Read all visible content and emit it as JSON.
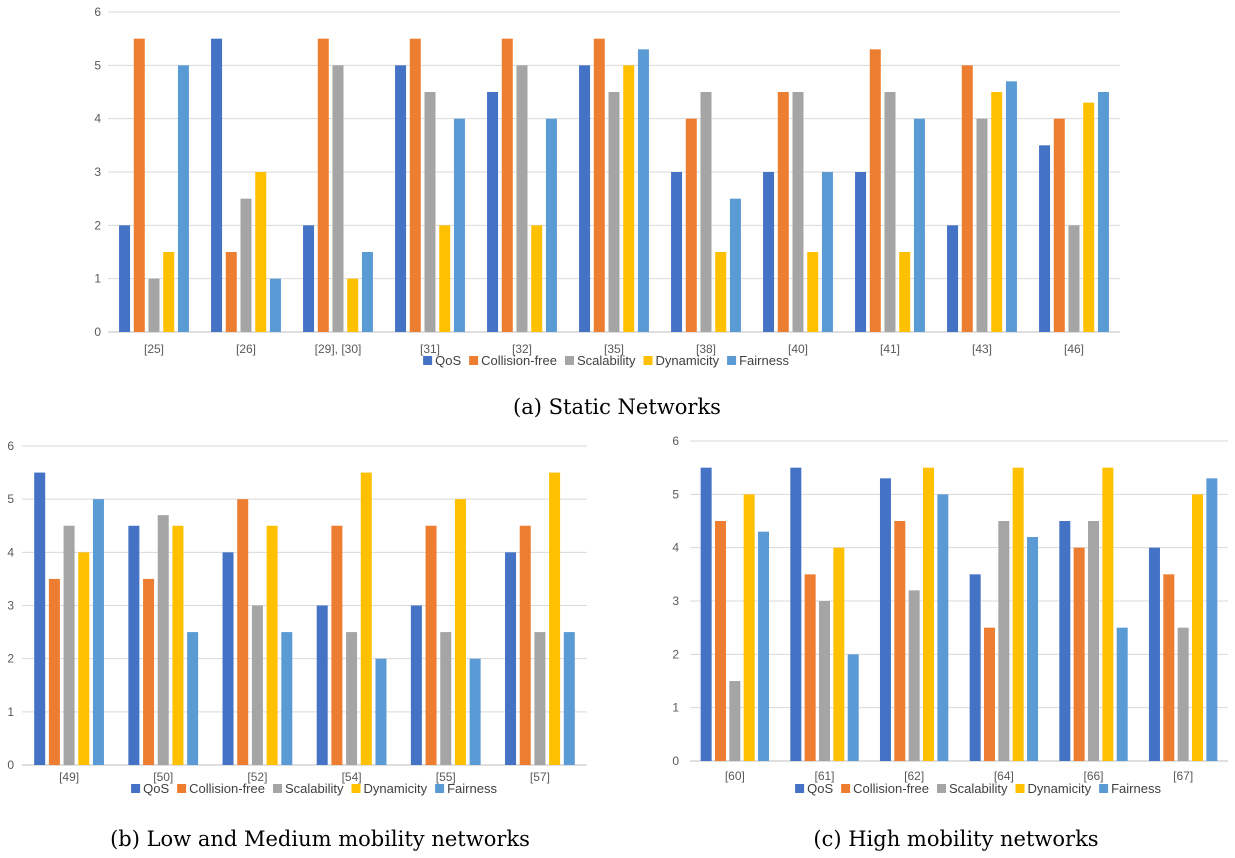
{
  "colors": {
    "QoS": "#4472c4",
    "Collision-free": "#ed7d31",
    "Scalability": "#a5a5a5",
    "Dynamicity": "#ffc000",
    "Fairness": "#5b9bd5"
  },
  "chart_data": [
    {
      "type": "bar",
      "caption": "(a) Static Networks",
      "categories": [
        "[25]",
        "[26]",
        "[29], [30]",
        "[31]",
        "[32]",
        "[35]",
        "[38]",
        "[40]",
        "[41]",
        "[43]",
        "[46]"
      ],
      "ylim": [
        0,
        6
      ],
      "yticks": [
        "0",
        "1",
        "2",
        "3",
        "4",
        "5",
        "6"
      ],
      "grid": true,
      "legend_position": "bottom",
      "series": [
        {
          "name": "QoS",
          "values": [
            2,
            5.5,
            2,
            5,
            4.5,
            5,
            3,
            3,
            3,
            2,
            3.5
          ]
        },
        {
          "name": "Collision-free",
          "values": [
            5.5,
            1.5,
            5.5,
            5.5,
            5.5,
            5.5,
            4,
            4.5,
            5.3,
            5,
            4
          ]
        },
        {
          "name": "Scalability",
          "values": [
            1,
            2.5,
            5,
            4.5,
            5,
            4.5,
            4.5,
            4.5,
            4.5,
            4,
            2
          ]
        },
        {
          "name": "Dynamicity",
          "values": [
            1.5,
            3,
            1,
            2,
            2,
            5,
            1.5,
            1.5,
            1.5,
            4.5,
            4.3
          ]
        },
        {
          "name": "Fairness",
          "values": [
            5,
            1,
            1.5,
            4,
            4,
            5.3,
            2.5,
            3,
            4,
            4.7,
            4.5
          ]
        }
      ]
    },
    {
      "type": "bar",
      "caption": "(b) Low and Medium mobility networks",
      "categories": [
        "[49]",
        "[50]",
        "[52]",
        "[54]",
        "[55]",
        "[57]"
      ],
      "ylim": [
        0,
        6
      ],
      "yticks": [
        "0",
        "1",
        "2",
        "3",
        "4",
        "5",
        "6"
      ],
      "grid": true,
      "legend_position": "bottom",
      "series": [
        {
          "name": "QoS",
          "values": [
            5.5,
            4.5,
            4,
            3,
            3,
            4
          ]
        },
        {
          "name": "Collision-free",
          "values": [
            3.5,
            3.5,
            5,
            4.5,
            4.5,
            4.5
          ]
        },
        {
          "name": "Scalability",
          "values": [
            4.5,
            4.7,
            3,
            2.5,
            2.5,
            2.5
          ]
        },
        {
          "name": "Dynamicity",
          "values": [
            4,
            4.5,
            4.5,
            5.5,
            5,
            5.5
          ]
        },
        {
          "name": "Fairness",
          "values": [
            5,
            2.5,
            2.5,
            2,
            2,
            2.5
          ]
        }
      ]
    },
    {
      "type": "bar",
      "caption": "(c) High mobility networks",
      "categories": [
        "[60]",
        "[61]",
        "[62]",
        "[64]",
        "[66]",
        "[67]"
      ],
      "ylim": [
        0,
        6
      ],
      "yticks": [
        "0",
        "1",
        "2",
        "3",
        "4",
        "5",
        "6"
      ],
      "grid": true,
      "legend_position": "bottom",
      "series": [
        {
          "name": "QoS",
          "values": [
            5.5,
            5.5,
            5.3,
            3.5,
            4.5,
            4
          ]
        },
        {
          "name": "Collision-free",
          "values": [
            4.5,
            3.5,
            4.5,
            2.5,
            4,
            3.5
          ]
        },
        {
          "name": "Scalability",
          "values": [
            1.5,
            3,
            3.2,
            4.5,
            4.5,
            2.5
          ]
        },
        {
          "name": "Dynamicity",
          "values": [
            5,
            4,
            5.5,
            5.5,
            5.5,
            5
          ]
        },
        {
          "name": "Fairness",
          "values": [
            4.3,
            2,
            5,
            4.2,
            2.5,
            5.3
          ]
        }
      ]
    }
  ]
}
